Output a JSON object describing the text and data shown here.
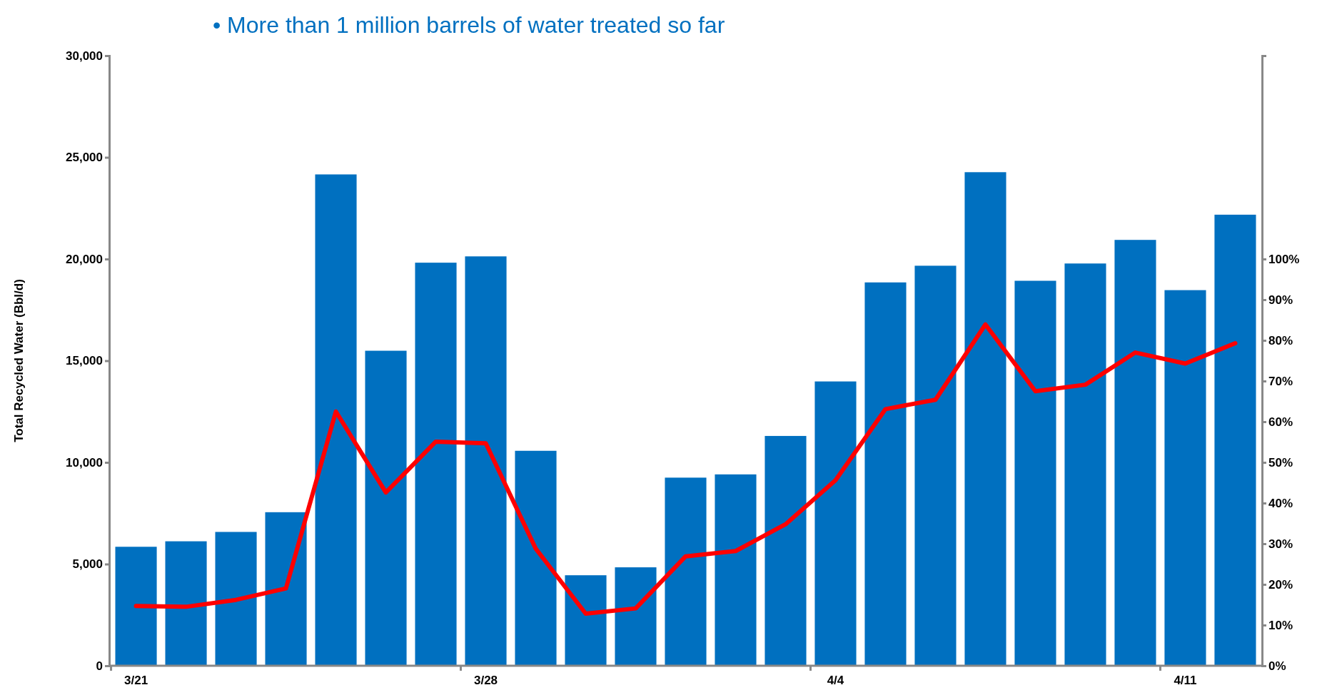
{
  "chart_data": {
    "type": "bar",
    "title": "•  More than 1 million barrels of water treated so far",
    "ylabel": "Total Recycled Water (Bbl/d)",
    "categories": [
      "3/21",
      null,
      null,
      null,
      null,
      null,
      null,
      "3/28",
      null,
      null,
      null,
      null,
      null,
      null,
      "4/4",
      null,
      null,
      null,
      null,
      null,
      null,
      "4/11",
      null
    ],
    "series": [
      {
        "color": "#0070c0",
        "values": [
          5850,
          6120,
          6580,
          7550,
          24160,
          15490,
          19820,
          20130,
          10570,
          4450,
          4840,
          9250,
          9410,
          11300,
          13980,
          18850,
          19670,
          24270,
          18930,
          19780,
          20940,
          18470,
          22180
        ]
      },
      {
        "type": "line",
        "axis": "y2",
        "color": "#ff0000",
        "values": [
          14.7,
          14.5,
          16.2,
          19.0,
          62.5,
          42.6,
          55.1,
          54.7,
          28.8,
          12.8,
          14.1,
          26.9,
          28.2,
          34.8,
          45.6,
          63.1,
          65.4,
          83.9,
          67.5,
          69.1,
          77.0,
          74.3,
          79.3
        ]
      }
    ],
    "ylim": [
      0,
      30000
    ],
    "yticks": [
      {
        "value": 0,
        "label": "0"
      },
      {
        "value": 5000,
        "label": "5,000"
      },
      {
        "value": 10000,
        "label": "10,000"
      },
      {
        "value": 15000,
        "label": "15,000"
      },
      {
        "value": 20000,
        "label": "20,000"
      },
      {
        "value": 25000,
        "label": "25,000"
      },
      {
        "value": 30000,
        "label": "30,000"
      }
    ],
    "y2lim": [
      0,
      150
    ],
    "y2ticks": [
      {
        "value": 0,
        "label": "0%"
      },
      {
        "value": 10,
        "label": "10%"
      },
      {
        "value": 20,
        "label": "20%"
      },
      {
        "value": 30,
        "label": "30%"
      },
      {
        "value": 40,
        "label": "40%"
      },
      {
        "value": 50,
        "label": "50%"
      },
      {
        "value": 60,
        "label": "60%"
      },
      {
        "value": 70,
        "label": "70%"
      },
      {
        "value": 80,
        "label": "80%"
      },
      {
        "value": 90,
        "label": "90%"
      },
      {
        "value": 100,
        "label": "100%"
      }
    ],
    "grid": false,
    "marker": "none",
    "line_style": "solid"
  }
}
